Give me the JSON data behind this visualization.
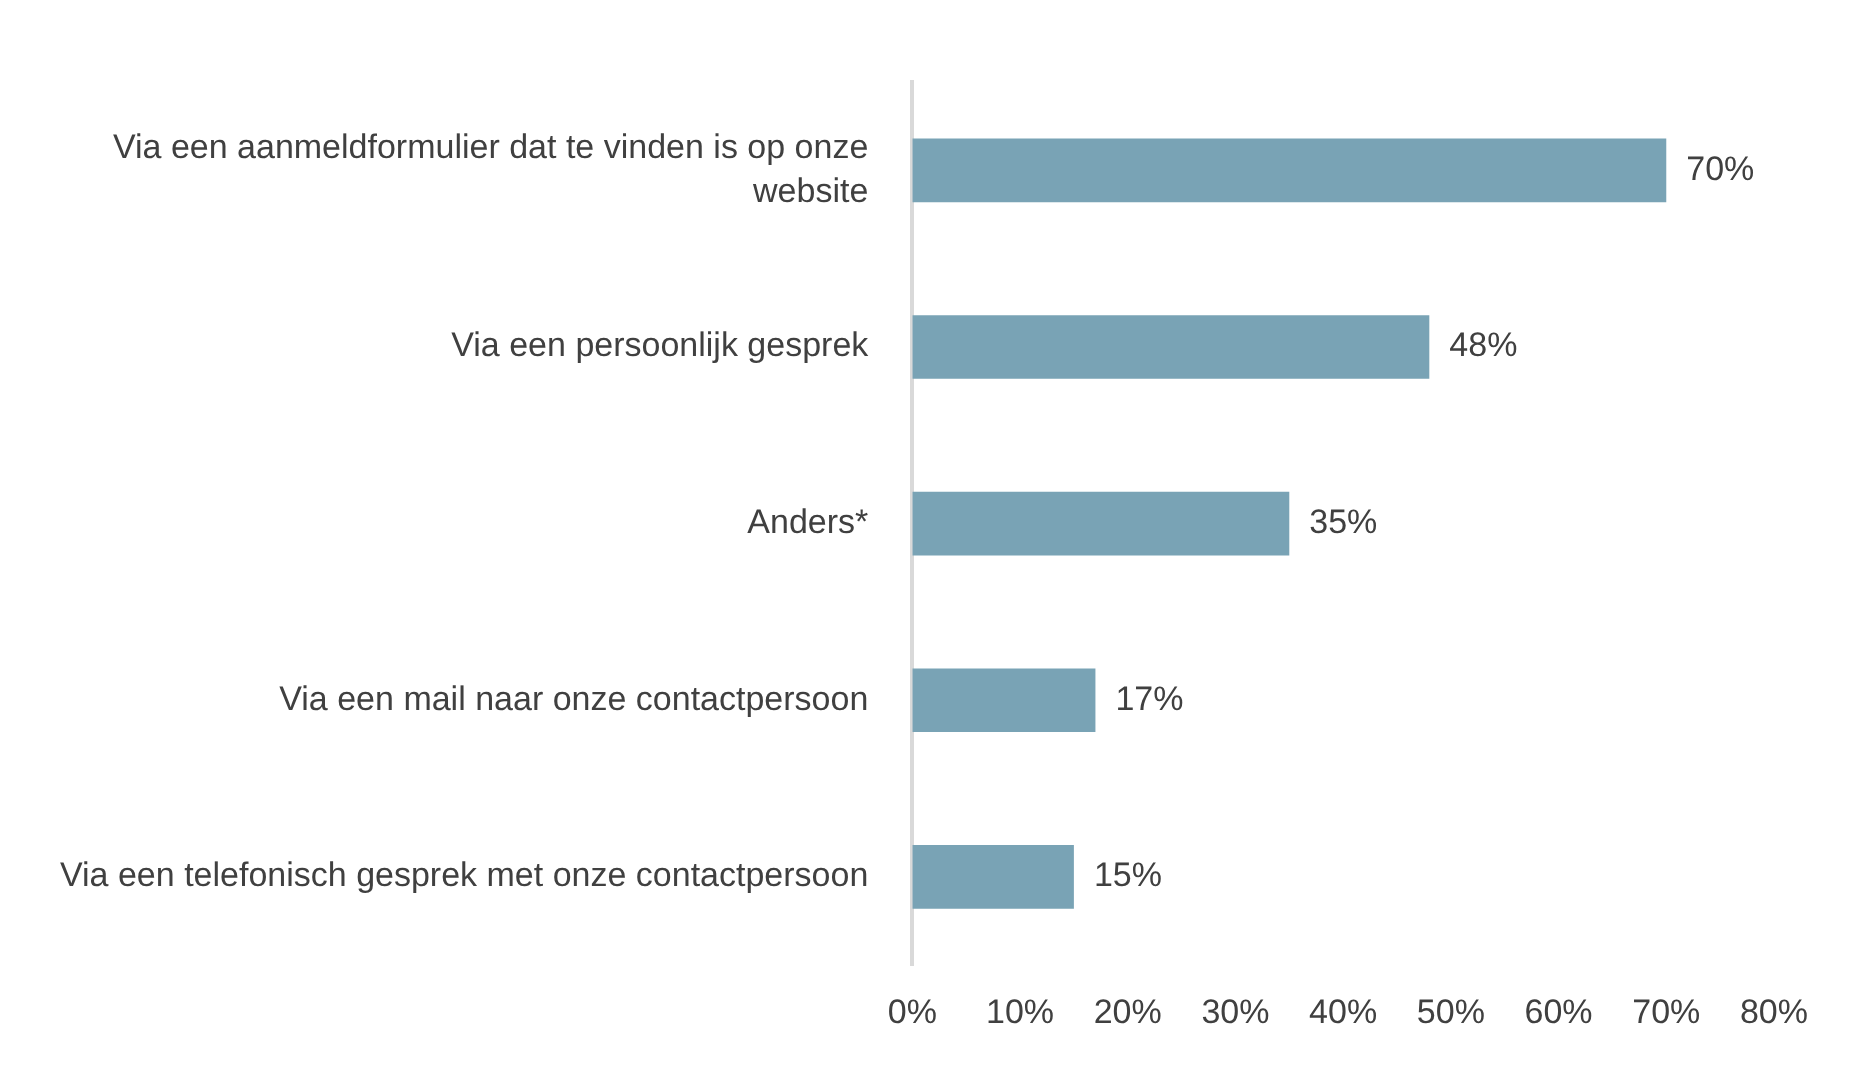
{
  "chart_data": {
    "type": "bar",
    "orientation": "horizontal",
    "categories": [
      "Via een aanmeldformulier dat te vinden is op onze website",
      "Via een persoonlijk gesprek",
      "Anders*",
      "Via een mail naar onze contactpersoon",
      "Via een telefonisch gesprek met onze contactpersoon"
    ],
    "values": [
      70,
      48,
      35,
      17,
      15
    ],
    "value_labels": [
      "70%",
      "48%",
      "35%",
      "17%",
      "15%"
    ],
    "color": "#79a3b5",
    "xlim": [
      0,
      80
    ],
    "xticks": [
      {
        "value": 0,
        "label": "0%"
      },
      {
        "value": 10,
        "label": "10%"
      },
      {
        "value": 20,
        "label": "20%"
      },
      {
        "value": 30,
        "label": "30%"
      },
      {
        "value": 40,
        "label": "40%"
      },
      {
        "value": 50,
        "label": "50%"
      },
      {
        "value": 60,
        "label": "60%"
      },
      {
        "value": 70,
        "label": "70%"
      },
      {
        "value": 80,
        "label": "80%"
      }
    ],
    "grid": false,
    "legend": false
  }
}
